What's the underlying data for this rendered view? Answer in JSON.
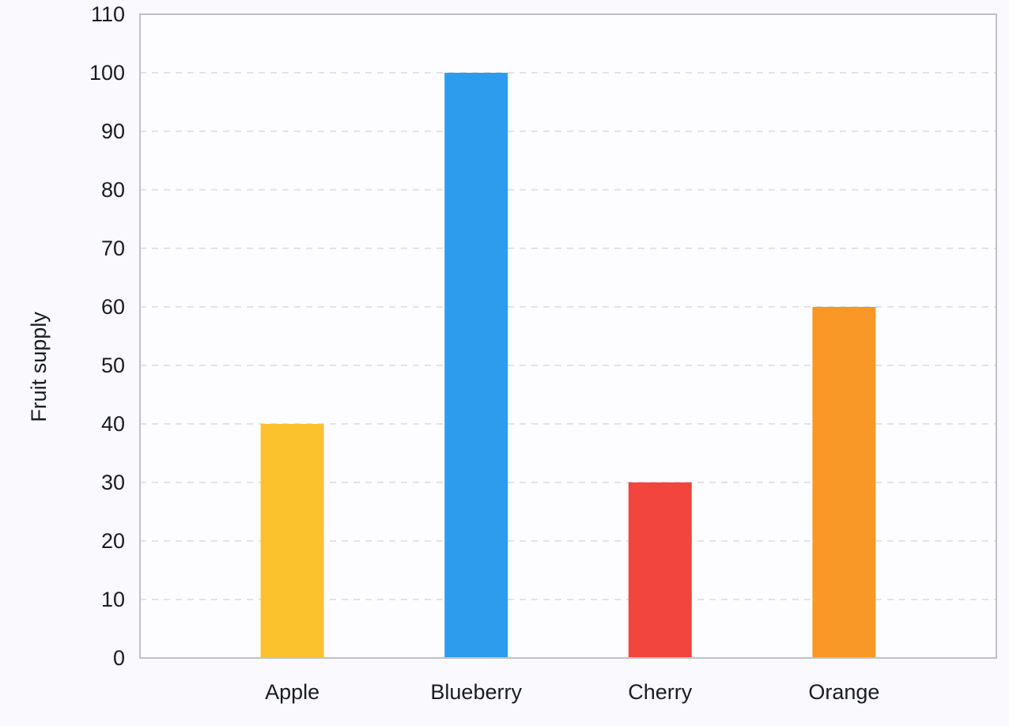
{
  "chart_data": {
    "type": "bar",
    "title": "",
    "xlabel": "",
    "ylabel": "Fruit supply",
    "categories": [
      "Apple",
      "Blueberry",
      "Cherry",
      "Orange"
    ],
    "values": [
      40,
      100,
      30,
      60
    ],
    "bar_colors": [
      "#FCC22D",
      "#2D9CEC",
      "#F2453D",
      "#FA9827"
    ],
    "ylim": [
      0,
      110
    ],
    "yticks": [
      0,
      10,
      20,
      30,
      40,
      50,
      60,
      70,
      80,
      90,
      100,
      110
    ],
    "grid": "horizontal-dashed",
    "legend": "none",
    "colors": {
      "grid": "#E2E2E7",
      "axis_border": "#C2C2C6",
      "text": "#1A1C21",
      "page_bg": "#FAFAFE",
      "plot_bg": "#FDFDFF"
    }
  }
}
